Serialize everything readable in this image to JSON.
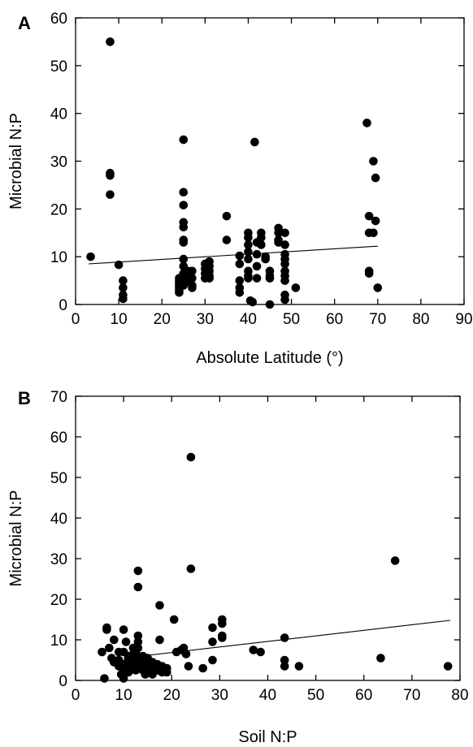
{
  "chart_data": [
    {
      "type": "scatter",
      "panel_label": "A",
      "xlabel": "Absolute Latitude (°)",
      "ylabel": "Microbial N:P",
      "xlim": [
        0,
        90
      ],
      "ylim": [
        0,
        60
      ],
      "xticks": [
        0,
        10,
        20,
        30,
        40,
        50,
        60,
        70,
        80,
        90
      ],
      "yticks": [
        0,
        10,
        20,
        30,
        40,
        50,
        60
      ],
      "grid": false,
      "trendline": {
        "x": [
          3,
          70
        ],
        "y": [
          8.5,
          12.2
        ]
      },
      "points": [
        [
          3.5,
          10
        ],
        [
          8,
          55
        ],
        [
          8,
          27.5
        ],
        [
          8,
          27
        ],
        [
          8,
          23
        ],
        [
          10,
          8.3
        ],
        [
          11,
          5
        ],
        [
          11,
          3.5
        ],
        [
          11,
          2
        ],
        [
          11,
          1.2
        ],
        [
          24,
          5.5
        ],
        [
          24,
          5
        ],
        [
          24,
          4.5
        ],
        [
          24,
          4
        ],
        [
          24,
          3.5
        ],
        [
          24,
          3
        ],
        [
          24,
          2.5
        ],
        [
          25,
          34.5
        ],
        [
          25,
          23.5
        ],
        [
          25,
          20.8
        ],
        [
          25,
          17.2
        ],
        [
          25,
          16.2
        ],
        [
          25,
          13.5
        ],
        [
          25,
          13
        ],
        [
          25,
          9.5
        ],
        [
          25,
          8
        ],
        [
          25,
          6.5
        ],
        [
          25,
          5.5
        ],
        [
          25,
          4
        ],
        [
          26,
          7
        ],
        [
          26,
          6
        ],
        [
          26,
          5
        ],
        [
          27,
          7
        ],
        [
          27,
          5.5
        ],
        [
          27,
          4
        ],
        [
          27,
          3.5
        ],
        [
          30,
          8.5
        ],
        [
          30,
          7.5
        ],
        [
          30,
          6.5
        ],
        [
          30,
          5.5
        ],
        [
          31,
          9
        ],
        [
          31,
          8
        ],
        [
          31,
          7
        ],
        [
          31,
          6
        ],
        [
          31,
          5.5
        ],
        [
          35,
          18.5
        ],
        [
          35,
          13.5
        ],
        [
          38,
          10.2
        ],
        [
          38,
          8.5
        ],
        [
          38,
          5
        ],
        [
          38,
          3.5
        ],
        [
          38,
          2.5
        ],
        [
          40,
          15
        ],
        [
          40,
          14
        ],
        [
          40,
          12.5
        ],
        [
          40,
          11
        ],
        [
          40,
          9.5
        ],
        [
          40,
          7
        ],
        [
          40,
          6
        ],
        [
          40,
          5.5
        ],
        [
          40.5,
          0.8
        ],
        [
          41,
          0.5
        ],
        [
          41.5,
          34
        ],
        [
          42,
          13
        ],
        [
          42,
          10.5
        ],
        [
          42,
          8
        ],
        [
          42,
          5.5
        ],
        [
          43,
          15
        ],
        [
          43,
          14
        ],
        [
          43,
          12.5
        ],
        [
          44,
          10
        ],
        [
          44,
          9.5
        ],
        [
          45,
          7
        ],
        [
          45,
          6
        ],
        [
          45,
          5.5
        ],
        [
          45,
          0
        ],
        [
          47,
          16
        ],
        [
          47,
          15
        ],
        [
          47,
          13.5
        ],
        [
          47,
          13
        ],
        [
          48.5,
          15
        ],
        [
          48.5,
          12.5
        ],
        [
          48.5,
          10.5
        ],
        [
          48.5,
          9.5
        ],
        [
          48.5,
          8.5
        ],
        [
          48.5,
          7
        ],
        [
          48.5,
          6
        ],
        [
          48.5,
          5
        ],
        [
          48.5,
          2
        ],
        [
          48.5,
          1
        ],
        [
          51,
          3.5
        ],
        [
          67.5,
          38
        ],
        [
          68,
          18.5
        ],
        [
          68,
          15
        ],
        [
          68,
          7
        ],
        [
          68,
          6.5
        ],
        [
          69,
          30
        ],
        [
          69,
          15
        ],
        [
          69.5,
          26.5
        ],
        [
          69.5,
          17.5
        ],
        [
          70,
          3.5
        ]
      ]
    },
    {
      "type": "scatter",
      "panel_label": "B",
      "xlabel": "Soil N:P",
      "ylabel": "Microbial N:P",
      "xlim": [
        0,
        80
      ],
      "ylim": [
        0,
        70
      ],
      "xticks": [
        0,
        10,
        20,
        30,
        40,
        50,
        60,
        70,
        80
      ],
      "yticks": [
        0,
        10,
        20,
        30,
        40,
        50,
        60,
        70
      ],
      "grid": false,
      "trendline": {
        "x": [
          10,
          78
        ],
        "y": [
          5.5,
          14.8
        ]
      },
      "points": [
        [
          5.5,
          7
        ],
        [
          6,
          0.5
        ],
        [
          6.5,
          13
        ],
        [
          6.5,
          12.5
        ],
        [
          7,
          8
        ],
        [
          7.5,
          5.5
        ],
        [
          8,
          10
        ],
        [
          8,
          4.5
        ],
        [
          9,
          7
        ],
        [
          9,
          5
        ],
        [
          9,
          3.5
        ],
        [
          9.5,
          1.5
        ],
        [
          10,
          12.5
        ],
        [
          10,
          7
        ],
        [
          10,
          4
        ],
        [
          10,
          2
        ],
        [
          10,
          0.5
        ],
        [
          10.5,
          9.5
        ],
        [
          11,
          6
        ],
        [
          11,
          5
        ],
        [
          11,
          3
        ],
        [
          11,
          2
        ],
        [
          12,
          8
        ],
        [
          12,
          6.5
        ],
        [
          12,
          5
        ],
        [
          12,
          3.5
        ],
        [
          12.5,
          2.5
        ],
        [
          13,
          27
        ],
        [
          13,
          23
        ],
        [
          13,
          11
        ],
        [
          13,
          9.5
        ],
        [
          13,
          8
        ],
        [
          13,
          6
        ],
        [
          13,
          4.5
        ],
        [
          13,
          3
        ],
        [
          14,
          6
        ],
        [
          14,
          4
        ],
        [
          14,
          2.5
        ],
        [
          14.5,
          5
        ],
        [
          14.5,
          1.5
        ],
        [
          15,
          5.5
        ],
        [
          15,
          3.5
        ],
        [
          15,
          2
        ],
        [
          16,
          4.5
        ],
        [
          16,
          3
        ],
        [
          16,
          1.5
        ],
        [
          17,
          4
        ],
        [
          17,
          2.5
        ],
        [
          17.5,
          18.5
        ],
        [
          17.5,
          10
        ],
        [
          18,
          3.5
        ],
        [
          18,
          2
        ],
        [
          19,
          3
        ],
        [
          19,
          2
        ],
        [
          20.5,
          15
        ],
        [
          21,
          7
        ],
        [
          22,
          7.5
        ],
        [
          22.5,
          8
        ],
        [
          23,
          6.5
        ],
        [
          23.5,
          3.5
        ],
        [
          24,
          55
        ],
        [
          24,
          27.5
        ],
        [
          26.5,
          3
        ],
        [
          28.5,
          13
        ],
        [
          28.5,
          9.5
        ],
        [
          28.5,
          5
        ],
        [
          30.5,
          15
        ],
        [
          30.5,
          14
        ],
        [
          30.5,
          11
        ],
        [
          30.5,
          10.5
        ],
        [
          37,
          7.5
        ],
        [
          38.5,
          7
        ],
        [
          43.5,
          10.5
        ],
        [
          43.5,
          5
        ],
        [
          43.5,
          3.5
        ],
        [
          46.5,
          3.5
        ],
        [
          63.5,
          5.5
        ],
        [
          66.5,
          29.5
        ],
        [
          77.5,
          3.5
        ]
      ]
    }
  ]
}
